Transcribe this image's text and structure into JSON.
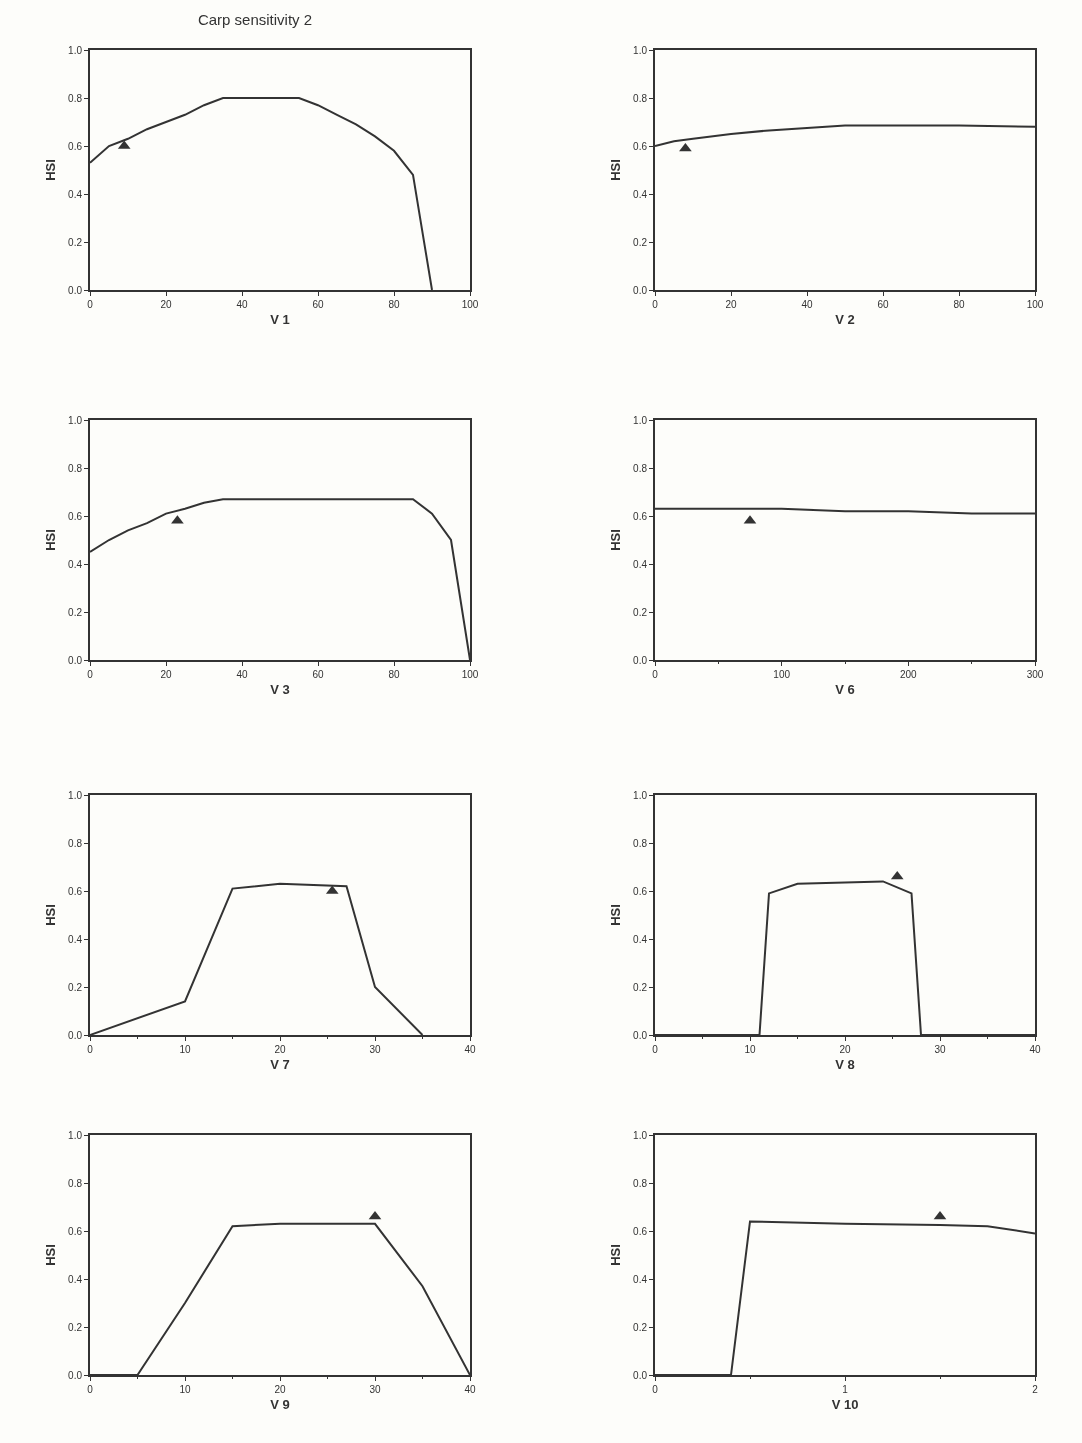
{
  "chart_data": [
    {
      "type": "line",
      "title": "Carp sensitivity 2",
      "xlabel": "V 1",
      "ylabel": "HSI",
      "xlim": [
        0,
        100
      ],
      "xticks": [
        0,
        20,
        40,
        60,
        80,
        100
      ],
      "ylim": [
        0,
        1
      ],
      "yticks": [
        {
          "value": 0,
          "label": "0.0"
        },
        {
          "value": 0.2,
          "label": "0.2"
        },
        {
          "value": 0.4,
          "label": "0.4"
        },
        {
          "value": 0.6,
          "label": "0.6"
        },
        {
          "value": 0.8,
          "label": "0.8"
        },
        {
          "value": 1,
          "label": "1.0"
        }
      ],
      "grid": false,
      "series": [
        {
          "type": "line",
          "color": "#333333",
          "x": [
            0,
            5,
            10,
            15,
            20,
            25,
            30,
            35,
            40,
            45,
            50,
            55,
            60,
            65,
            70,
            75,
            80,
            85,
            90
          ],
          "values": [
            0.53,
            0.6,
            0.63,
            0.67,
            0.7,
            0.73,
            0.77,
            0.8,
            0.8,
            0.8,
            0.8,
            0.8,
            0.77,
            0.73,
            0.69,
            0.64,
            0.58,
            0.48,
            0
          ]
        },
        {
          "type": "scatter",
          "marker": "triangle",
          "color": "#333333",
          "x": [
            9
          ],
          "values": [
            0.6
          ]
        }
      ]
    },
    {
      "type": "line",
      "xlabel": "V 2",
      "ylabel": "HSI",
      "xlim": [
        0,
        100
      ],
      "xticks": [
        0,
        20,
        40,
        60,
        80,
        100
      ],
      "ylim": [
        0,
        1
      ],
      "yticks": [
        {
          "value": 0,
          "label": "0.0"
        },
        {
          "value": 0.2,
          "label": "0.2"
        },
        {
          "value": 0.4,
          "label": "0.4"
        },
        {
          "value": 0.6,
          "label": "0.6"
        },
        {
          "value": 0.8,
          "label": "0.8"
        },
        {
          "value": 1,
          "label": "1.0"
        }
      ],
      "grid": false,
      "series": [
        {
          "type": "line",
          "color": "#333333",
          "x": [
            0,
            5,
            10,
            20,
            30,
            40,
            50,
            60,
            80,
            100
          ],
          "values": [
            0.6,
            0.62,
            0.63,
            0.65,
            0.665,
            0.675,
            0.685,
            0.685,
            0.685,
            0.68
          ]
        },
        {
          "type": "scatter",
          "marker": "triangle",
          "color": "#333333",
          "x": [
            8
          ],
          "values": [
            0.59
          ]
        }
      ]
    },
    {
      "type": "line",
      "xlabel": "V 3",
      "ylabel": "HSI",
      "xlim": [
        0,
        100
      ],
      "xticks": [
        0,
        20,
        40,
        60,
        80,
        100
      ],
      "ylim": [
        0,
        1
      ],
      "yticks": [
        {
          "value": 0,
          "label": "0.0"
        },
        {
          "value": 0.2,
          "label": "0.2"
        },
        {
          "value": 0.4,
          "label": "0.4"
        },
        {
          "value": 0.6,
          "label": "0.6"
        },
        {
          "value": 0.8,
          "label": "0.8"
        },
        {
          "value": 1,
          "label": "1.0"
        }
      ],
      "grid": false,
      "series": [
        {
          "type": "line",
          "color": "#333333",
          "x": [
            0,
            5,
            10,
            15,
            20,
            25,
            30,
            35,
            85,
            90,
            95,
            100
          ],
          "values": [
            0.45,
            0.5,
            0.54,
            0.57,
            0.61,
            0.63,
            0.655,
            0.67,
            0.67,
            0.61,
            0.5,
            0
          ]
        },
        {
          "type": "scatter",
          "marker": "triangle",
          "color": "#333333",
          "x": [
            23
          ],
          "values": [
            0.58
          ]
        }
      ]
    },
    {
      "type": "line",
      "xlabel": "V 6",
      "ylabel": "HSI",
      "xlim": [
        0,
        300
      ],
      "xticks": [
        0,
        100,
        200,
        300
      ],
      "ylim": [
        0,
        1
      ],
      "yticks": [
        {
          "value": 0,
          "label": "0.0"
        },
        {
          "value": 0.2,
          "label": "0.2"
        },
        {
          "value": 0.4,
          "label": "0.4"
        },
        {
          "value": 0.6,
          "label": "0.6"
        },
        {
          "value": 0.8,
          "label": "0.8"
        },
        {
          "value": 1,
          "label": "1.0"
        }
      ],
      "grid": false,
      "series": [
        {
          "type": "line",
          "color": "#333333",
          "x": [
            0,
            100,
            150,
            200,
            250,
            300
          ],
          "values": [
            0.63,
            0.63,
            0.62,
            0.62,
            0.61,
            0.61
          ]
        },
        {
          "type": "scatter",
          "marker": "triangle",
          "color": "#333333",
          "x": [
            75
          ],
          "values": [
            0.58
          ]
        }
      ]
    },
    {
      "type": "line",
      "xlabel": "V 7",
      "ylabel": "HSI",
      "xlim": [
        0,
        40
      ],
      "xticks": [
        0,
        10,
        20,
        30,
        40
      ],
      "ylim": [
        0,
        1
      ],
      "yticks": [
        {
          "value": 0,
          "label": "0.0"
        },
        {
          "value": 0.2,
          "label": "0.2"
        },
        {
          "value": 0.4,
          "label": "0.4"
        },
        {
          "value": 0.6,
          "label": "0.6"
        },
        {
          "value": 0.8,
          "label": "0.8"
        },
        {
          "value": 1,
          "label": "1.0"
        }
      ],
      "grid": false,
      "series": [
        {
          "type": "line",
          "color": "#333333",
          "x": [
            0,
            10,
            15,
            20,
            27,
            30,
            35
          ],
          "values": [
            0,
            0.14,
            0.61,
            0.63,
            0.62,
            0.2,
            0
          ]
        },
        {
          "type": "scatter",
          "marker": "triangle",
          "color": "#333333",
          "x": [
            25.5
          ],
          "values": [
            0.6
          ]
        }
      ]
    },
    {
      "type": "line",
      "xlabel": "V 8",
      "ylabel": "HSI",
      "xlim": [
        0,
        40
      ],
      "xticks": [
        0,
        10,
        20,
        30,
        40
      ],
      "ylim": [
        0,
        1
      ],
      "yticks": [
        {
          "value": 0,
          "label": "0.0"
        },
        {
          "value": 0.2,
          "label": "0.2"
        },
        {
          "value": 0.4,
          "label": "0.4"
        },
        {
          "value": 0.6,
          "label": "0.6"
        },
        {
          "value": 0.8,
          "label": "0.8"
        },
        {
          "value": 1,
          "label": "1.0"
        }
      ],
      "grid": false,
      "series": [
        {
          "type": "line",
          "color": "#333333",
          "x": [
            0,
            11,
            12,
            15,
            20,
            24,
            27,
            28,
            40
          ],
          "values": [
            0,
            0,
            0.59,
            0.63,
            0.635,
            0.64,
            0.59,
            0,
            0
          ]
        },
        {
          "type": "scatter",
          "marker": "triangle",
          "color": "#333333",
          "x": [
            25.5
          ],
          "values": [
            0.66
          ]
        }
      ]
    },
    {
      "type": "line",
      "xlabel": "V 9",
      "ylabel": "HSI",
      "xlim": [
        0,
        40
      ],
      "xticks": [
        0,
        10,
        20,
        30,
        40
      ],
      "ylim": [
        0,
        1
      ],
      "yticks": [
        {
          "value": 0,
          "label": "0.0"
        },
        {
          "value": 0.2,
          "label": "0.2"
        },
        {
          "value": 0.4,
          "label": "0.4"
        },
        {
          "value": 0.6,
          "label": "0.6"
        },
        {
          "value": 0.8,
          "label": "0.8"
        },
        {
          "value": 1,
          "label": "1.0"
        }
      ],
      "grid": false,
      "series": [
        {
          "type": "line",
          "color": "#333333",
          "x": [
            0,
            5,
            10,
            15,
            20,
            30,
            35,
            40
          ],
          "values": [
            0,
            0,
            0.3,
            0.62,
            0.63,
            0.63,
            0.37,
            0
          ]
        },
        {
          "type": "scatter",
          "marker": "triangle",
          "color": "#333333",
          "x": [
            30
          ],
          "values": [
            0.66
          ]
        }
      ]
    },
    {
      "type": "line",
      "xlabel": "V 10",
      "ylabel": "HSI",
      "xlim": [
        0,
        2
      ],
      "xticks": [
        0,
        1,
        2
      ],
      "ylim": [
        0,
        1
      ],
      "yticks": [
        {
          "value": 0,
          "label": "0.0"
        },
        {
          "value": 0.2,
          "label": "0.2"
        },
        {
          "value": 0.4,
          "label": "0.4"
        },
        {
          "value": 0.6,
          "label": "0.6"
        },
        {
          "value": 0.8,
          "label": "0.8"
        },
        {
          "value": 1,
          "label": "1.0"
        }
      ],
      "grid": false,
      "series": [
        {
          "type": "line",
          "color": "#333333",
          "x": [
            0,
            0.4,
            0.5,
            1,
            1.5,
            1.75,
            2
          ],
          "values": [
            0,
            0,
            0.64,
            0.63,
            0.625,
            0.62,
            0.59
          ]
        },
        {
          "type": "scatter",
          "marker": "triangle",
          "color": "#333333",
          "x": [
            1.5
          ],
          "values": [
            0.66
          ]
        }
      ]
    }
  ]
}
